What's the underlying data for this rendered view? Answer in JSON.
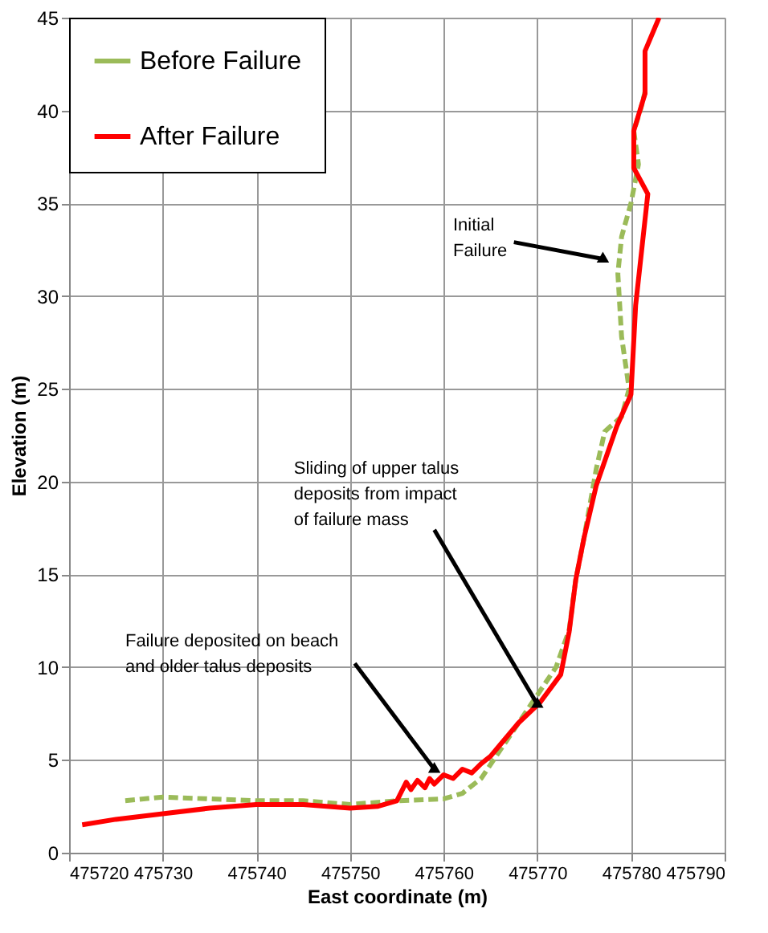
{
  "chart_data": {
    "type": "line",
    "xlabel": "East coordinate (m)",
    "ylabel": "Elevation (m)",
    "xlim": [
      475720,
      475790
    ],
    "xticks": [
      475720,
      475730,
      475740,
      475750,
      475760,
      475770,
      475780,
      475790
    ],
    "ylim": [
      0,
      45
    ],
    "yticks": [
      0,
      5,
      10,
      15,
      20,
      25,
      30,
      35,
      40,
      45
    ],
    "grid": true,
    "legend": "top left",
    "series": [
      {
        "name": "Before Failure",
        "color": "#9bbb59",
        "line_style": "dashed",
        "x": [
          475726,
          475730,
          475735,
          475740,
          475745,
          475750,
          475755,
          475760,
          475762,
          475764,
          475766,
          475768,
          475770,
          475772,
          475773.4,
          475774.1,
          475775,
          475776.3,
          475777.2,
          475779,
          475779.8,
          475779,
          475778.6,
          475779,
          475780,
          475780.8,
          475780.3,
          475781,
          475781.5
        ],
        "values": [
          2.8,
          3.0,
          2.9,
          2.8,
          2.8,
          2.6,
          2.8,
          2.9,
          3.2,
          4.0,
          5.5,
          7.0,
          8.5,
          10.0,
          12.0,
          14.7,
          17.0,
          20.7,
          22.7,
          23.5,
          25.0,
          27.8,
          31.2,
          33.2,
          35.0,
          37.1,
          38.9,
          40.0,
          41.0
        ]
      },
      {
        "name": "After Failure",
        "color": "#ff0000",
        "line_style": "solid",
        "x": [
          475721.4,
          475725,
          475730,
          475735,
          475740,
          475745,
          475750,
          475753,
          475755,
          475756,
          475756.5,
          475757.2,
          475758,
          475758.5,
          475759,
          475760,
          475761,
          475762,
          475763,
          475764,
          475765,
          475766,
          475768,
          475770.3,
          475772.5,
          475773.4,
          475774.1,
          475775,
          475776.3,
          475778.5,
          475780,
          475780.5,
          475781.8,
          475780.3,
          475780.3,
          475781.5,
          475781.5,
          475783
        ],
        "values": [
          1.5,
          1.8,
          2.1,
          2.4,
          2.6,
          2.6,
          2.4,
          2.5,
          2.8,
          3.8,
          3.4,
          3.9,
          3.5,
          4.0,
          3.7,
          4.2,
          4.0,
          4.5,
          4.3,
          4.8,
          5.2,
          5.8,
          7.0,
          8.1,
          9.6,
          11.9,
          14.7,
          17.0,
          19.8,
          23.0,
          24.7,
          29.5,
          35.5,
          36.9,
          38.9,
          40.9,
          43.2,
          45.0
        ]
      }
    ],
    "annotations": [
      {
        "text": "Initial Failure",
        "x": 475777,
        "y": 32
      },
      {
        "text": "Sliding of upper talus deposits from impact of failure mass",
        "x": 475770,
        "y": 8
      },
      {
        "text": "Failure deposited on beach and older talus deposits",
        "x": 475759,
        "y": 4.5
      }
    ]
  }
}
